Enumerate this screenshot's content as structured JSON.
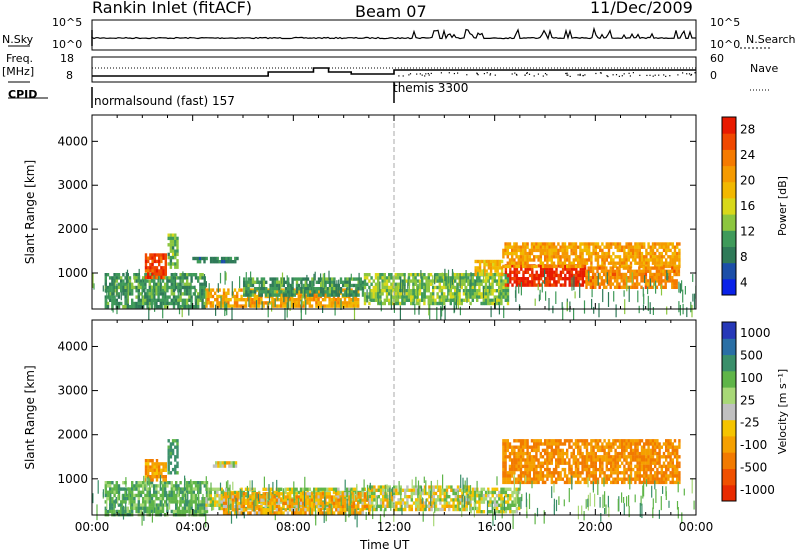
{
  "header": {
    "radar": "Rankin Inlet (fitACF)",
    "beam": "Beam 07",
    "date": "11/Dec/2009"
  },
  "top_panels": {
    "nsky_label": "N.Sky",
    "nsearch_label": "N.Search",
    "nsky_ticks": [
      "10^5",
      "10^0"
    ],
    "nsearch_ticks": [
      "10^5",
      "10^0"
    ],
    "freq_label": "Freq.",
    "freq_unit": "[MHz]",
    "freq_ticks": [
      "18",
      "8"
    ],
    "nave_label": "Nave",
    "nave_ticks": [
      "60",
      "0"
    ],
    "cpid_label": "CPID",
    "cpid_segments": [
      {
        "label": "normalsound (fast) 157",
        "start_hour": 0,
        "end_hour": 12
      },
      {
        "label": "themis 3300",
        "start_hour": 12,
        "end_hour": 24
      }
    ]
  },
  "colorbars": {
    "power": {
      "label": "Power [dB]",
      "ticks": [
        "28",
        "24",
        "20",
        "16",
        "12",
        "8",
        "4"
      ],
      "tick_values": [
        28,
        24,
        20,
        16,
        12,
        8,
        4
      ],
      "range": [
        0,
        30
      ],
      "colors": [
        "#0a22e8",
        "#1c4fa8",
        "#2f7a58",
        "#3f9a5a",
        "#8cc63f",
        "#d8d81a",
        "#f2b800",
        "#f59a00",
        "#f57a00",
        "#f04800",
        "#e81a00"
      ]
    },
    "velocity": {
      "label": "Velocity [m s⁻¹]",
      "ticks": [
        "1000",
        "500",
        "100",
        "25",
        "-25",
        "-100",
        "-500",
        "-1000"
      ],
      "colors": [
        "#2638b8",
        "#2a6fa5",
        "#3a8f6a",
        "#5fb548",
        "#a8d877",
        "#c0c0c0",
        "#f5c400",
        "#f5a000",
        "#f27a00",
        "#f05000",
        "#e82a00"
      ]
    }
  },
  "chart_data": [
    {
      "type": "heatmap",
      "panel": "power",
      "ylabel": "Slant Range [km]",
      "xlabel": "",
      "xlim": [
        0,
        24
      ],
      "ylim": [
        180,
        4600
      ],
      "yticks": [
        1000,
        2000,
        3000,
        4000
      ],
      "xticks": [
        0,
        4,
        8,
        12,
        16,
        20,
        24
      ],
      "regions": [
        {
          "x": [
            0.5,
            4.5
          ],
          "y": [
            200,
            1000
          ],
          "value": 9
        },
        {
          "x": [
            2.1,
            2.9
          ],
          "y": [
            900,
            1450
          ],
          "value": 26
        },
        {
          "x": [
            3.0,
            3.4
          ],
          "y": [
            1100,
            1900
          ],
          "value": 11
        },
        {
          "x": [
            3.9,
            5.8
          ],
          "y": [
            1230,
            1370
          ],
          "value": 7
        },
        {
          "x": [
            4.5,
            10.6
          ],
          "y": [
            280,
            650
          ],
          "value": 20
        },
        {
          "x": [
            6.0,
            10.8
          ],
          "y": [
            500,
            900
          ],
          "value": 9
        },
        {
          "x": [
            10.8,
            16.5
          ],
          "y": [
            300,
            1000
          ],
          "value": 12
        },
        {
          "x": [
            15.2,
            16.3
          ],
          "y": [
            1000,
            1300
          ],
          "value": 18
        },
        {
          "x": [
            16.4,
            19.6
          ],
          "y": [
            700,
            1200
          ],
          "value": 28
        },
        {
          "x": [
            16.3,
            23.3
          ],
          "y": [
            1150,
            1700
          ],
          "value": 20
        },
        {
          "x": [
            19.6,
            23.3
          ],
          "y": [
            700,
            1150
          ],
          "value": 22
        }
      ]
    },
    {
      "type": "heatmap",
      "panel": "velocity",
      "ylabel": "Slant Range [km]",
      "xlabel": "Time UT",
      "xlim": [
        0,
        24
      ],
      "ylim": [
        180,
        4600
      ],
      "yticks": [
        1000,
        2000,
        3000,
        4000
      ],
      "xticks": [
        0,
        4,
        8,
        12,
        16,
        20,
        24
      ],
      "xticklabels": [
        "00:00",
        "04:00",
        "08:00",
        "12:00",
        "16:00",
        "20:00",
        "00:00"
      ],
      "regions": [
        {
          "x": [
            0.5,
            4.6
          ],
          "y": [
            200,
            950
          ],
          "value": 200
        },
        {
          "x": [
            2.1,
            2.9
          ],
          "y": [
            950,
            1450
          ],
          "value": -200
        },
        {
          "x": [
            3.0,
            3.4
          ],
          "y": [
            1150,
            1900
          ],
          "value": 300
        },
        {
          "x": [
            4.5,
            11.0
          ],
          "y": [
            300,
            800
          ],
          "value": 60
        },
        {
          "x": [
            5.2,
            11.0
          ],
          "y": [
            250,
            700
          ],
          "value": -150
        },
        {
          "x": [
            11.0,
            15.0
          ],
          "y": [
            300,
            850
          ],
          "value": 0
        },
        {
          "x": [
            15.0,
            17.0
          ],
          "y": [
            250,
            800
          ],
          "value": 60
        },
        {
          "x": [
            16.3,
            23.3
          ],
          "y": [
            900,
            1900
          ],
          "value": -250
        },
        {
          "x": [
            4.8,
            5.8
          ],
          "y": [
            1300,
            1400
          ],
          "value": 0
        }
      ]
    }
  ],
  "time_axis": {
    "xlabel": "Time UT",
    "ticks": [
      "00:00",
      "04:00",
      "08:00",
      "12:00",
      "16:00",
      "20:00",
      "00:00"
    ]
  }
}
